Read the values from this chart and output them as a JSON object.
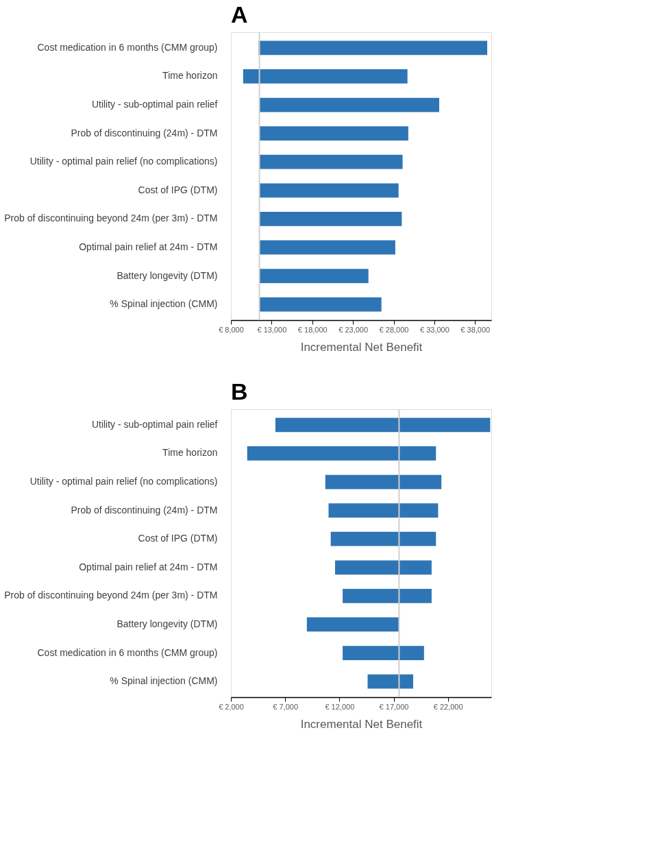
{
  "chart_data": [
    {
      "type": "bar",
      "title": "A",
      "orientation": "horizontal",
      "color": "#2e75b6",
      "xlabel": "Incremental Net Benefit",
      "categories": [
        "Cost medication in 6 months (CMM group)",
        "Time horizon",
        "Utility - sub-optimal pain relief",
        "Prob of discontinuing (24m) - DTM",
        "Utility - optimal pain relief (no complications)",
        "Cost of IPG (DTM)",
        "Prob of discontinuing beyond 24m (per 3m) - DTM",
        "Optimal pain relief at 24m - DTM",
        "Battery longevity (DTM)",
        "% Spinal injection (CMM)"
      ],
      "base": [
        11400,
        9500,
        11500,
        11500,
        11500,
        11500,
        11500,
        11500,
        11500,
        11500
      ],
      "values": [
        28100,
        20200,
        22100,
        18300,
        17600,
        17100,
        17500,
        16700,
        13400,
        15000
      ],
      "xlim": [
        8000,
        40000
      ],
      "xticks": [
        {
          "value": 8000,
          "label": "€ 8,000"
        },
        {
          "value": 13000,
          "label": "€ 13,000"
        },
        {
          "value": 18000,
          "label": "€ 18,000"
        },
        {
          "value": 23000,
          "label": "€ 23,000"
        },
        {
          "value": 28000,
          "label": "€ 28,000"
        },
        {
          "value": 33000,
          "label": "€ 33,000"
        },
        {
          "value": 38000,
          "label": "€ 38,000"
        }
      ],
      "ref_lines": [
        {
          "axis": "x",
          "value": 11500,
          "color": "#d0d0d0"
        }
      ],
      "grid": false
    },
    {
      "type": "bar",
      "title": "B",
      "orientation": "horizontal",
      "color": "#2e75b6",
      "xlabel": "Incremental Net Benefit",
      "categories": [
        "Utility - sub-optimal pain relief",
        "Time horizon",
        "Utility - optimal pain relief (no complications)",
        "Prob of discontinuing (24m) - DTM",
        "Cost of IPG (DTM)",
        "Optimal pain relief at 24m - DTM",
        "Prob of discontinuing beyond 24m (per 3m) - DTM",
        "Battery longevity (DTM)",
        "Cost medication in 6 months (CMM group)",
        "% Spinal injection (CMM)"
      ],
      "base": [
        6100,
        3500,
        10700,
        11000,
        11200,
        11600,
        12300,
        9000,
        12300,
        14600
      ],
      "values": [
        19800,
        17400,
        10700,
        10100,
        9700,
        8900,
        8200,
        8500,
        7500,
        4200
      ],
      "xlim": [
        2000,
        26000
      ],
      "xticks": [
        {
          "value": 2000,
          "label": "€ 2,000"
        },
        {
          "value": 7000,
          "label": "€ 7,000"
        },
        {
          "value": 12000,
          "label": "€ 12,000"
        },
        {
          "value": 17000,
          "label": "€ 17,000"
        },
        {
          "value": 22000,
          "label": "€ 22,000"
        }
      ],
      "ref_lines": [
        {
          "axis": "x",
          "value": 17500,
          "color": "#d0d0d0"
        }
      ],
      "grid": false
    }
  ]
}
